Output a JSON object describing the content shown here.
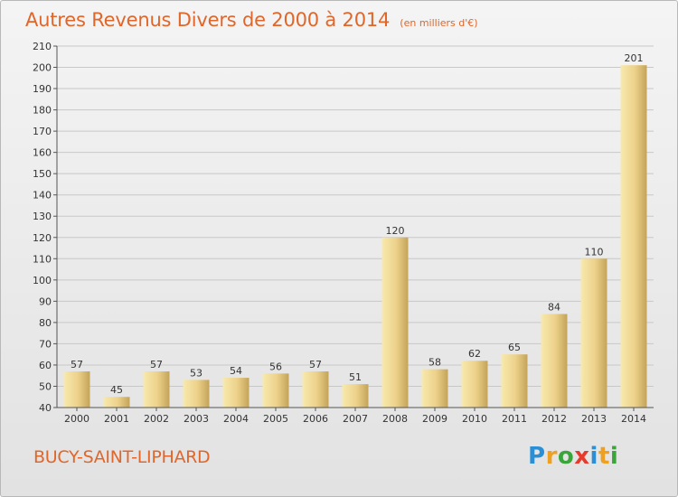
{
  "title": "Autres Revenus Divers de 2000 à 2014",
  "unit_note": "(en milliers d'€)",
  "commune": "BUCY-SAINT-LIPHARD",
  "logo": {
    "text": "Proxiti",
    "letters": [
      "P",
      "r",
      "o",
      "x",
      "i",
      "t",
      "i"
    ],
    "colors": [
      "#2a8fd4",
      "#f0a020",
      "#3aa53a",
      "#e83a2a",
      "#2a8fd4",
      "#f0a020",
      "#3aa53a"
    ]
  },
  "colors": {
    "title": "#e0662a",
    "bar_light": "#f6e3a0",
    "bar_dark": "#c6a860",
    "axis": "#555555",
    "grid": "#c8c8c8"
  },
  "chart_data": {
    "type": "bar",
    "title": "Autres Revenus Divers de 2000 à 2014",
    "categories": [
      "2000",
      "2001",
      "2002",
      "2003",
      "2004",
      "2005",
      "2006",
      "2007",
      "2008",
      "2009",
      "2010",
      "2011",
      "2012",
      "2013",
      "2014"
    ],
    "values": [
      57,
      45,
      57,
      53,
      54,
      56,
      57,
      51,
      120,
      58,
      62,
      65,
      84,
      110,
      201
    ],
    "ylim": [
      40,
      210
    ],
    "yticks": [
      40,
      50,
      60,
      70,
      80,
      90,
      100,
      110,
      120,
      130,
      140,
      150,
      160,
      170,
      180,
      190,
      200,
      210
    ],
    "grid": true
  }
}
